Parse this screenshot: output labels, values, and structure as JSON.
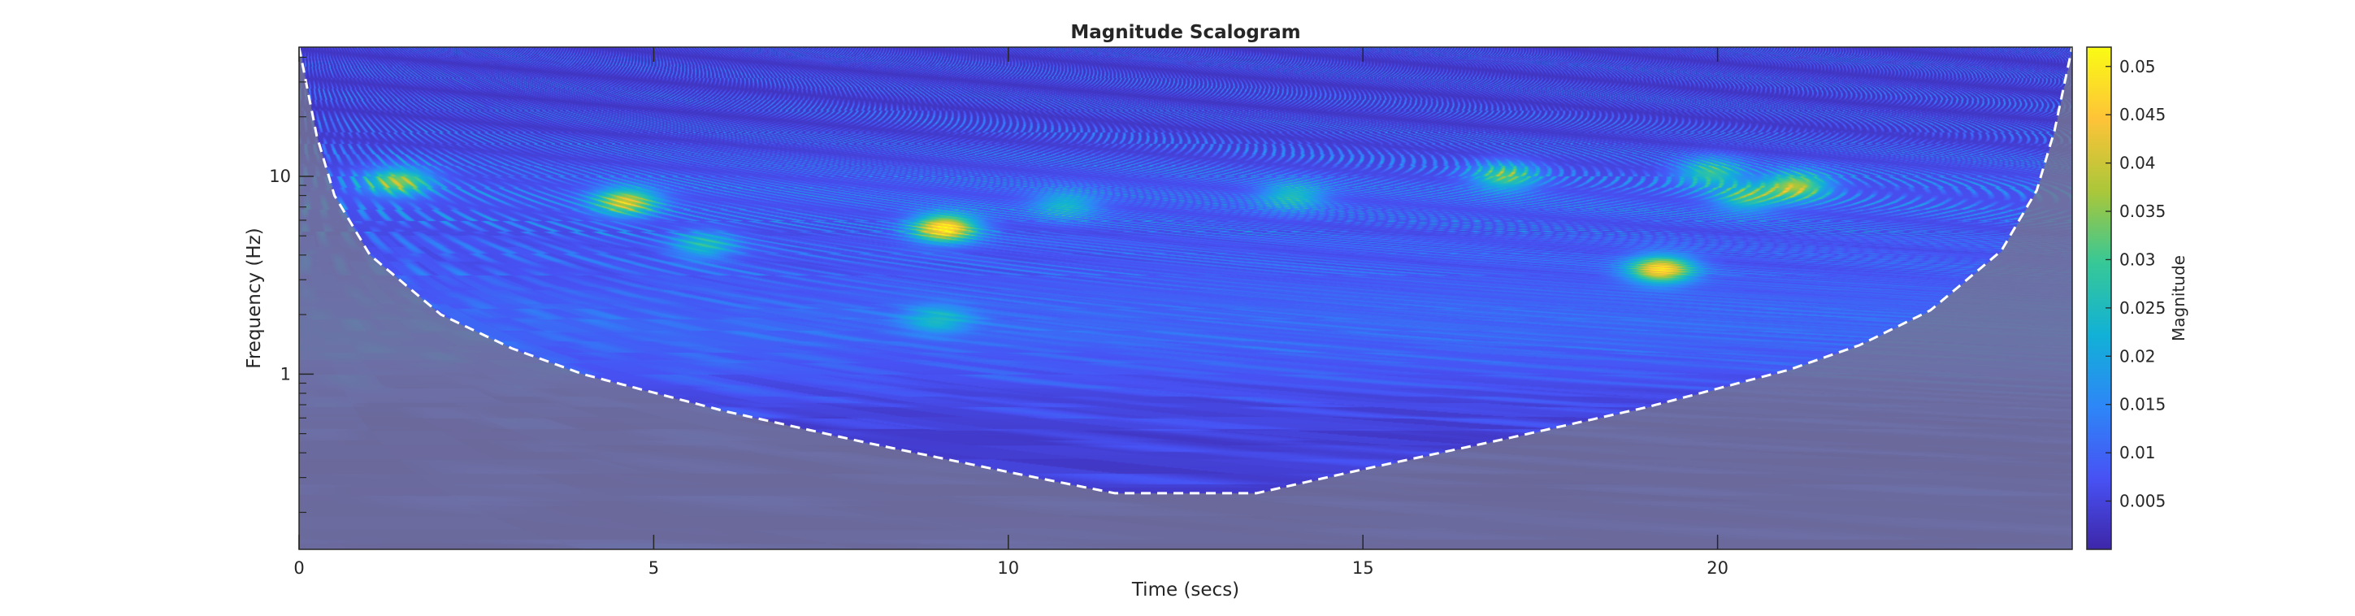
{
  "chart_data": {
    "type": "heatmap",
    "title": "Magnitude Scalogram",
    "xlabel": "Time (secs)",
    "ylabel": "Frequency (Hz)",
    "colorbar_label": "Magnitude",
    "xlim": [
      0,
      25
    ],
    "ylim": [
      0.13,
      45
    ],
    "y_scale": "log",
    "x_ticks": [
      0,
      5,
      10,
      15,
      20
    ],
    "x_tick_labels": [
      "0",
      "5",
      "10",
      "15",
      "20"
    ],
    "y_ticks": [
      1,
      10
    ],
    "y_tick_labels": [
      "1",
      "10"
    ],
    "colorbar_range": [
      0,
      0.052
    ],
    "colorbar_ticks": [
      0.005,
      0.01,
      0.015,
      0.02,
      0.025,
      0.03,
      0.035,
      0.04,
      0.045,
      0.05
    ],
    "colorbar_tick_labels": [
      "0.005",
      "0.01",
      "0.015",
      "0.02",
      "0.025",
      "0.03",
      "0.035",
      "0.04",
      "0.045",
      "0.05"
    ],
    "colormap": "parula",
    "cone_of_influence": {
      "style": "white dashed",
      "t": [
        0,
        0.25,
        0.5,
        1,
        2,
        3,
        4,
        6,
        8,
        10,
        11.5,
        12.5,
        13.5,
        15,
        17,
        19,
        21,
        22,
        23,
        24,
        24.5,
        24.75,
        25
      ],
      "f": [
        45,
        16,
        8,
        4,
        2.0,
        1.35,
        1.0,
        0.65,
        0.45,
        0.32,
        0.25,
        0.25,
        0.25,
        0.33,
        0.47,
        0.68,
        1.05,
        1.4,
        2.1,
        4.2,
        8.5,
        17,
        45
      ]
    },
    "hotspots": [
      {
        "t": 9.1,
        "f": 5.5,
        "value": 0.052
      },
      {
        "t": 19.2,
        "f": 3.4,
        "value": 0.048
      },
      {
        "t": 4.6,
        "f": 7.5,
        "value": 0.042
      },
      {
        "t": 1.4,
        "f": 9.5,
        "value": 0.038
      },
      {
        "t": 21.1,
        "f": 9.0,
        "value": 0.04
      },
      {
        "t": 17.0,
        "f": 10.0,
        "value": 0.034
      },
      {
        "t": 19.9,
        "f": 10.5,
        "value": 0.032
      },
      {
        "t": 20.4,
        "f": 7.8,
        "value": 0.03
      },
      {
        "t": 14.0,
        "f": 8.0,
        "value": 0.028
      },
      {
        "t": 9.0,
        "f": 1.9,
        "value": 0.025
      },
      {
        "t": 10.8,
        "f": 7.2,
        "value": 0.026
      },
      {
        "t": 5.7,
        "f": 4.5,
        "value": 0.027
      }
    ]
  }
}
